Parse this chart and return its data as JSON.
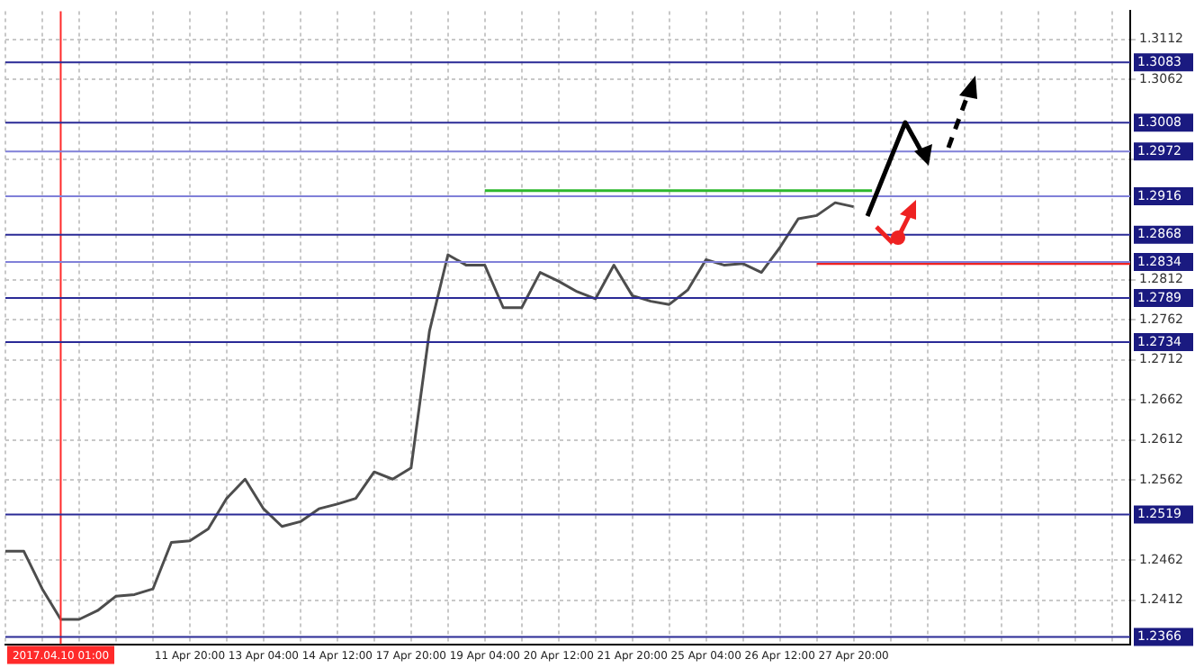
{
  "chart_data": {
    "type": "line",
    "categories": [
      null,
      null,
      null,
      "2017.04.10 01:00",
      null,
      null,
      null,
      null,
      null,
      null,
      "11 Apr 20:00",
      null,
      null,
      null,
      "13 Apr 04:00",
      null,
      null,
      null,
      "14 Apr 12:00",
      null,
      null,
      null,
      "17 Apr 20:00",
      null,
      null,
      null,
      "19 Apr 04:00",
      null,
      null,
      null,
      "20 Apr 12:00",
      null,
      null,
      null,
      "21 Apr 20:00",
      null,
      null,
      null,
      "25 Apr 04:00",
      null,
      null,
      null,
      "26 Apr 12:00",
      null,
      null,
      null,
      "27 Apr 20:00",
      null,
      null,
      null,
      null,
      null,
      null,
      null,
      null,
      null,
      null,
      null,
      null,
      null,
      null,
      null
    ],
    "series": [
      {
        "color": "#4d4d4d",
        "values": [
          1.2473,
          1.2473,
          1.2426,
          1.2388,
          1.2388,
          1.2399,
          1.2417,
          1.2419,
          1.2426,
          1.2484,
          1.2486,
          1.2501,
          1.2539,
          1.2563,
          1.2526,
          1.2504,
          1.251,
          1.2526,
          1.2532,
          1.2539,
          1.2572,
          1.2563,
          1.2577,
          1.2748,
          1.2843,
          1.283,
          1.283,
          1.2777,
          1.2777,
          1.2821,
          1.281,
          1.2797,
          1.2788,
          1.283,
          1.2792,
          1.2785,
          1.2781,
          1.2799,
          1.2837,
          1.283,
          1.2832,
          1.2821,
          1.2852,
          1.2888,
          1.2892,
          1.2908,
          1.2903,
          null,
          null,
          null,
          null,
          null,
          null,
          null,
          null,
          null,
          null,
          null,
          null,
          null,
          null,
          null
        ]
      },
      {
        "color": "#2eb82e",
        "values": [
          null,
          null,
          null,
          null,
          null,
          null,
          null,
          null,
          null,
          null,
          null,
          null,
          null,
          null,
          null,
          null,
          null,
          null,
          null,
          null,
          null,
          null,
          null,
          null,
          null,
          null,
          1.2923,
          1.2923,
          1.2923,
          1.2923,
          1.2923,
          1.2923,
          1.2923,
          1.2923,
          1.2923,
          1.2923,
          1.2923,
          1.2923,
          1.2923,
          1.2923,
          1.2923,
          1.2923,
          1.2923,
          1.2923,
          1.2923,
          1.2923,
          1.2923,
          1.2923,
          null,
          null,
          null,
          null,
          null,
          null,
          null,
          null,
          null,
          null,
          null,
          null,
          null,
          null
        ]
      },
      {
        "color": "#ee2222",
        "values": [
          null,
          null,
          null,
          null,
          null,
          null,
          null,
          null,
          null,
          null,
          null,
          null,
          null,
          null,
          null,
          null,
          null,
          null,
          null,
          null,
          null,
          null,
          null,
          null,
          null,
          null,
          null,
          null,
          null,
          null,
          null,
          null,
          null,
          null,
          null,
          null,
          null,
          null,
          null,
          null,
          null,
          null,
          null,
          null,
          1.2832,
          1.2832,
          1.2832,
          1.2832,
          1.2832,
          1.2832,
          1.2832,
          1.2832,
          1.2832,
          1.2832,
          1.2832,
          1.2832,
          1.2832,
          1.2832,
          1.2832,
          1.2832,
          1.2832,
          1.2832
        ]
      }
    ],
    "ylim": [
      1.2357,
      1.3147
    ],
    "yticks": [
      1.3112,
      1.3062,
      {
        "value": 1.2962,
        "label": null
      },
      1.2812,
      1.2762,
      1.2712,
      1.2662,
      1.2612,
      1.2562,
      1.2462,
      1.2412
    ],
    "ref_lines": [
      {
        "axis": "y",
        "value": 1.3083,
        "label": "1.3083",
        "color": "#2a2a96"
      },
      {
        "axis": "y",
        "value": 1.3008,
        "label": "1.3008",
        "color": "#2a2a96"
      },
      {
        "axis": "y",
        "value": 1.2972,
        "label": "1.2972",
        "color": "#8080d8"
      },
      {
        "axis": "y",
        "value": 1.2916,
        "label": "1.2916",
        "color": "#8080d8"
      },
      {
        "axis": "y",
        "value": 1.2868,
        "label": "1.2868",
        "color": "#2a2a96"
      },
      {
        "axis": "y",
        "value": 1.2834,
        "label": "1.2834",
        "color": "#8080d8"
      },
      {
        "axis": "y",
        "value": 1.2789,
        "label": "1.2789",
        "color": "#2a2a96"
      },
      {
        "axis": "y",
        "value": 1.2734,
        "label": "1.2734",
        "color": "#2a2a96"
      },
      {
        "axis": "y",
        "value": 1.2519,
        "label": "1.2519",
        "color": "#2a2a96"
      },
      {
        "axis": "y",
        "value": 1.2366,
        "label": "1.2366",
        "color": "#2a2a96"
      },
      {
        "axis": "x",
        "value": "2017.04.10 01:00",
        "color": "#ff2a2a"
      }
    ],
    "grid": true,
    "legend": false,
    "marker": "none",
    "line_style": "solid"
  }
}
